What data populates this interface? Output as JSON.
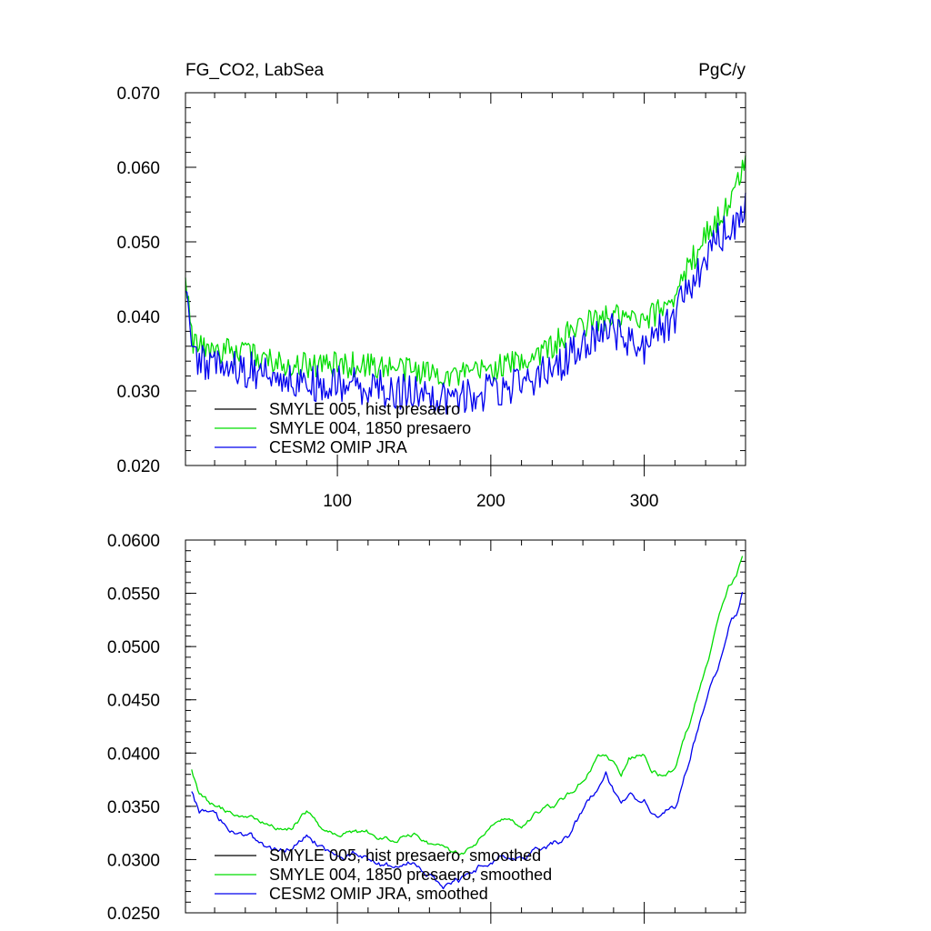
{
  "chart_data": [
    {
      "type": "line",
      "title_left": "FG_CO2, LabSea",
      "title_right": "PgC/y",
      "xlim": [
        1,
        366
      ],
      "ylim": [
        0.02,
        0.07
      ],
      "xticks": [
        100,
        200,
        300
      ],
      "xtick_labels": [
        "100",
        "200",
        "300"
      ],
      "yticks": [
        0.02,
        0.03,
        0.04,
        0.05,
        0.06,
        0.07
      ],
      "ytick_labels": [
        "0.020",
        "0.030",
        "0.040",
        "0.050",
        "0.060",
        "0.070"
      ],
      "legend": {
        "position": "bottom-left",
        "entries": [
          {
            "label": "SMYLE 005, hist presaero",
            "color": "#000000"
          },
          {
            "label": "SMYLE 004, 1850 presaero",
            "color": "#00dd00"
          },
          {
            "label": "CESM2 OMIP JRA",
            "color": "#0000ee"
          }
        ]
      },
      "series": [
        {
          "name": "SMYLE 004, 1850 presaero",
          "color": "#00dd00",
          "noise_amplitude": 0.0018,
          "x": [
            1,
            3,
            5,
            10,
            20,
            40,
            60,
            80,
            100,
            120,
            140,
            160,
            180,
            200,
            220,
            240,
            260,
            280,
            300,
            320,
            340,
            355,
            360,
            364,
            366
          ],
          "y": [
            0.046,
            0.042,
            0.037,
            0.036,
            0.0355,
            0.035,
            0.034,
            0.0335,
            0.0335,
            0.0335,
            0.033,
            0.0325,
            0.032,
            0.033,
            0.034,
            0.036,
            0.039,
            0.04,
            0.039,
            0.043,
            0.051,
            0.055,
            0.057,
            0.06,
            0.062
          ]
        },
        {
          "name": "CESM2 OMIP JRA",
          "color": "#0000ee",
          "noise_amplitude": 0.0025,
          "x": [
            1,
            3,
            5,
            10,
            20,
            40,
            60,
            80,
            100,
            120,
            140,
            160,
            180,
            200,
            220,
            240,
            260,
            280,
            300,
            320,
            340,
            355,
            360,
            364,
            366
          ],
          "y": [
            0.045,
            0.04,
            0.035,
            0.034,
            0.034,
            0.033,
            0.032,
            0.031,
            0.031,
            0.0305,
            0.03,
            0.0295,
            0.029,
            0.03,
            0.031,
            0.033,
            0.036,
            0.038,
            0.036,
            0.04,
            0.048,
            0.052,
            0.053,
            0.055,
            0.056
          ]
        }
      ]
    },
    {
      "type": "line",
      "xlim": [
        1,
        366
      ],
      "ylim": [
        0.025,
        0.06
      ],
      "xticks": [
        100,
        200,
        300
      ],
      "yticks": [
        0.025,
        0.03,
        0.035,
        0.04,
        0.045,
        0.05,
        0.055,
        0.06
      ],
      "ytick_labels": [
        "0.0250",
        "0.0300",
        "0.0350",
        "0.0400",
        "0.0450",
        "0.0500",
        "0.0550",
        "0.0600"
      ],
      "legend": {
        "position": "bottom-left",
        "entries": [
          {
            "label": "SMYLE 005, hist presaero, smoothed",
            "color": "#000000"
          },
          {
            "label": "SMYLE 004, 1850 presaero, smoothed",
            "color": "#00dd00"
          },
          {
            "label": "CESM2 OMIP JRA, smoothed",
            "color": "#0000ee"
          }
        ]
      },
      "series": [
        {
          "name": "SMYLE 004, 1850 presaero, smoothed",
          "color": "#00dd00",
          "noise_amplitude": 0.0003,
          "x": [
            5,
            10,
            20,
            30,
            40,
            50,
            60,
            70,
            80,
            90,
            100,
            110,
            120,
            130,
            140,
            150,
            160,
            170,
            180,
            190,
            200,
            210,
            220,
            230,
            240,
            250,
            260,
            270,
            275,
            280,
            285,
            290,
            300,
            305,
            310,
            320,
            330,
            340,
            350,
            355,
            360,
            364
          ],
          "y": [
            0.0385,
            0.036,
            0.035,
            0.0345,
            0.034,
            0.0335,
            0.033,
            0.033,
            0.0345,
            0.033,
            0.0325,
            0.0325,
            0.0325,
            0.032,
            0.032,
            0.0325,
            0.0315,
            0.031,
            0.0305,
            0.0315,
            0.0335,
            0.034,
            0.033,
            0.0345,
            0.035,
            0.036,
            0.0375,
            0.0395,
            0.04,
            0.039,
            0.038,
            0.0395,
            0.04,
            0.0385,
            0.038,
            0.0385,
            0.043,
            0.048,
            0.0535,
            0.0555,
            0.0565,
            0.0585
          ]
        },
        {
          "name": "CESM2 OMIP JRA, smoothed",
          "color": "#0000ee",
          "noise_amplitude": 0.0004,
          "x": [
            5,
            10,
            20,
            30,
            40,
            50,
            60,
            70,
            80,
            90,
            100,
            110,
            120,
            130,
            140,
            150,
            160,
            170,
            180,
            190,
            200,
            210,
            220,
            230,
            240,
            250,
            260,
            270,
            275,
            280,
            285,
            290,
            300,
            305,
            310,
            320,
            330,
            340,
            350,
            355,
            360,
            364
          ],
          "y": [
            0.0365,
            0.0345,
            0.034,
            0.033,
            0.0325,
            0.0315,
            0.031,
            0.031,
            0.0325,
            0.031,
            0.03,
            0.0305,
            0.03,
            0.0295,
            0.0295,
            0.03,
            0.0285,
            0.0275,
            0.028,
            0.029,
            0.03,
            0.0305,
            0.03,
            0.031,
            0.0315,
            0.032,
            0.0345,
            0.037,
            0.038,
            0.0365,
            0.0355,
            0.036,
            0.0355,
            0.0345,
            0.034,
            0.035,
            0.0395,
            0.045,
            0.049,
            0.052,
            0.053,
            0.055
          ]
        }
      ]
    }
  ]
}
